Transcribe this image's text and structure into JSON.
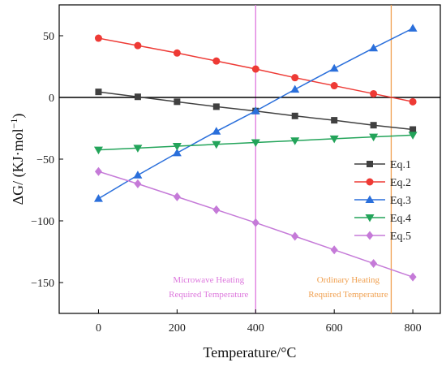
{
  "chart_data": {
    "type": "line",
    "xlabel": "Temperature/°C",
    "ylabel_main": "ΔG/ (KJ·mol",
    "ylabel_sup": "−1",
    "ylabel_tail": ")",
    "xlim": [
      -100,
      870
    ],
    "ylim": [
      -175,
      75
    ],
    "xticks": [
      0,
      200,
      400,
      600,
      800
    ],
    "xtick_labels": [
      "0",
      "200",
      "400",
      "600",
      "800"
    ],
    "yticks": [
      50,
      0,
      -50,
      -100,
      -150
    ],
    "ytick_labels": [
      "50",
      "0",
      "−50",
      "−100",
      "−150"
    ],
    "x": [
      0,
      100,
      200,
      300,
      400,
      500,
      600,
      700,
      800
    ],
    "series": [
      {
        "name": "Eq.1",
        "color": "#404040",
        "marker": "square",
        "values": [
          4.5,
          0.5,
          -3.5,
          -7.5,
          -11,
          -15,
          -18.5,
          -22.5,
          -26
        ]
      },
      {
        "name": "Eq.2",
        "color": "#ee3a35",
        "marker": "circle",
        "values": [
          48,
          42,
          36,
          29.5,
          23,
          16,
          9.5,
          3,
          -3.5
        ]
      },
      {
        "name": "Eq.3",
        "color": "#2a6fdb",
        "marker": "triangle-up",
        "values": [
          -82,
          -63,
          -45,
          -27.5,
          -11,
          6.5,
          23.5,
          40,
          56
        ]
      },
      {
        "name": "Eq.4",
        "color": "#23a45a",
        "marker": "triangle-down",
        "values": [
          -42.5,
          -41,
          -39.5,
          -38,
          -36.5,
          -35,
          -33.5,
          -32,
          -30.5
        ]
      },
      {
        "name": "Eq.5",
        "color": "#c57ad8",
        "marker": "diamond",
        "values": [
          -60,
          -70,
          -80.5,
          -91,
          -101.5,
          -112.5,
          -123.5,
          -134.5,
          -145.5
        ]
      }
    ],
    "reference_lines": [
      {
        "x": 400,
        "color": "#dd77dd",
        "label_line1": "Microwave Heating",
        "label_line2": "Required Temperature"
      },
      {
        "x": 745,
        "color": "#f0a050",
        "label_line1": "Ordinary Heating",
        "label_line2": "Required Temperature"
      }
    ],
    "zero_line": 0,
    "legend": "right",
    "grid": false
  }
}
